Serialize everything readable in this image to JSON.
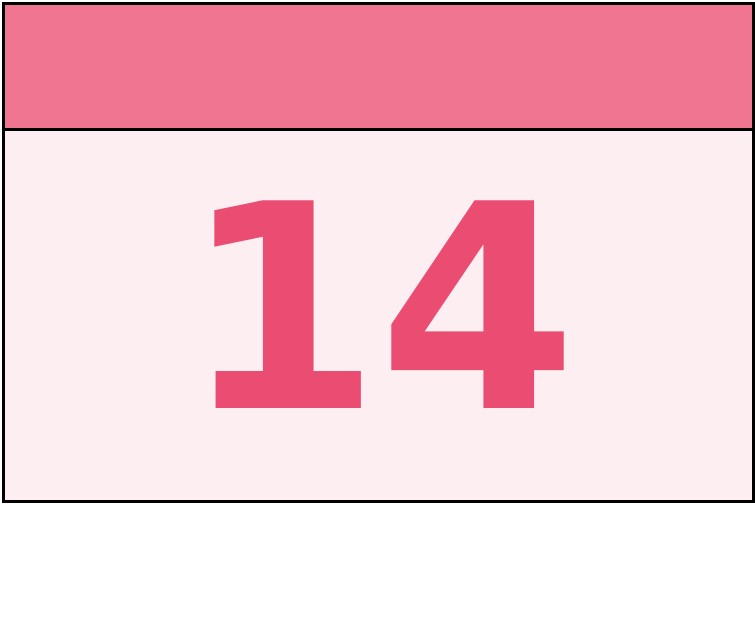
{
  "calendar": {
    "day": "14",
    "colors": {
      "header": "#ef7590",
      "body": "#fdeef1",
      "number": "#eb4d72",
      "border": "#000000"
    }
  }
}
